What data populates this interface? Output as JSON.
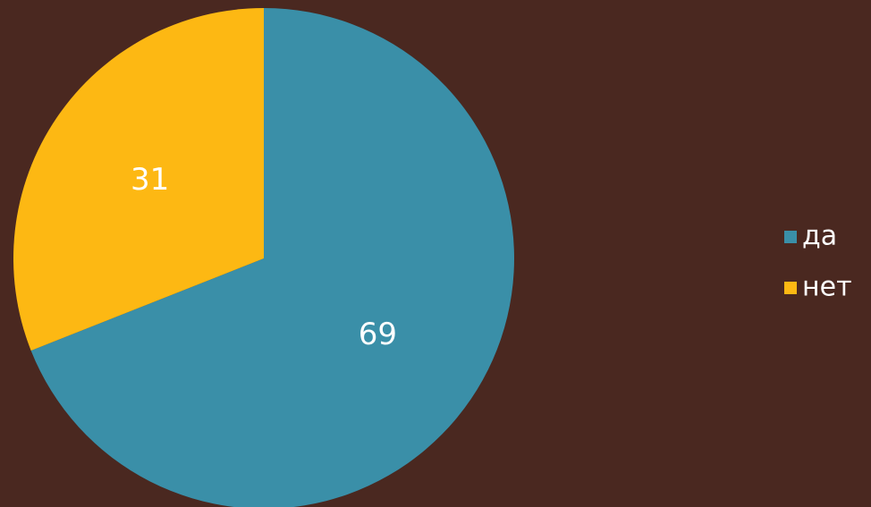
{
  "chart_data": {
    "type": "pie",
    "categories": [
      "да",
      "нет"
    ],
    "values": [
      69,
      31
    ],
    "colors": [
      "#3a8fa8",
      "#fdb813"
    ],
    "legend": "right"
  }
}
